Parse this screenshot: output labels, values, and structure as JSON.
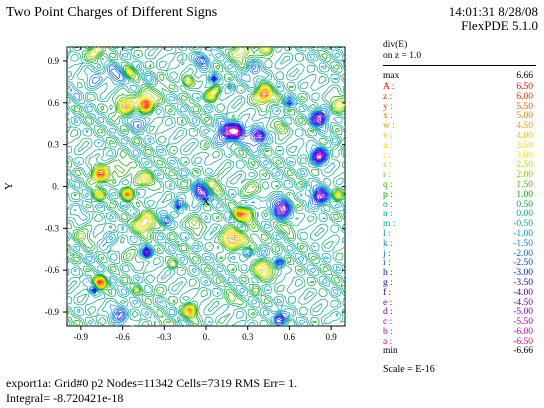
{
  "header": {
    "title": "Two Point Charges of Different Signs",
    "timestamp": "14:01:31 8/28/08",
    "software": "FlexPDE 5.1.0"
  },
  "legend": {
    "quantity": "div(E)",
    "surface": "on z = 1.0",
    "max_label": "max",
    "max_value": "6.66",
    "min_label": "min",
    "min_value": "-6.66",
    "scale": "Scale = E-16",
    "levels": [
      {
        "label": "A :",
        "value": "6.50",
        "color": "#ff0000"
      },
      {
        "label": "z :",
        "value": "6.00",
        "color": "#ff2a00"
      },
      {
        "label": "y :",
        "value": "5.50",
        "color": "#ff5500"
      },
      {
        "label": "x :",
        "value": "5.00",
        "color": "#ff7700"
      },
      {
        "label": "w :",
        "value": "4.50",
        "color": "#ff9900"
      },
      {
        "label": "v :",
        "value": "4.00",
        "color": "#ffbb00"
      },
      {
        "label": "u :",
        "value": "3.50",
        "color": "#ffdd00"
      },
      {
        "label": "t :",
        "value": "3.00",
        "color": "#eeee00"
      },
      {
        "label": "s :",
        "value": "2.50",
        "color": "#bbdd00"
      },
      {
        "label": "r :",
        "value": "2.00",
        "color": "#88cc00"
      },
      {
        "label": "q :",
        "value": "1.50",
        "color": "#44bb00"
      },
      {
        "label": "p :",
        "value": "1.00",
        "color": "#00aa00"
      },
      {
        "label": "o :",
        "value": "0.50",
        "color": "#00aa44"
      },
      {
        "label": "n :",
        "value": "0.00",
        "color": "#00aa88"
      },
      {
        "label": "m :",
        "value": "-0.50",
        "color": "#00aaaa"
      },
      {
        "label": "l :",
        "value": "-1.00",
        "color": "#0099cc"
      },
      {
        "label": "k :",
        "value": "-1.50",
        "color": "#0088dd"
      },
      {
        "label": "j :",
        "value": "-2.00",
        "color": "#0066ee"
      },
      {
        "label": "i :",
        "value": "-2.50",
        "color": "#0044ff"
      },
      {
        "label": "h :",
        "value": "-3.00",
        "color": "#0022ff"
      },
      {
        "label": "g :",
        "value": "-3.50",
        "color": "#2200ff"
      },
      {
        "label": "f :",
        "value": "-4.00",
        "color": "#4400ee"
      },
      {
        "label": "e :",
        "value": "-4.50",
        "color": "#6600dd"
      },
      {
        "label": "d :",
        "value": "-5.00",
        "color": "#8800cc"
      },
      {
        "label": "c :",
        "value": "-5.50",
        "color": "#aa00bb"
      },
      {
        "label": "b :",
        "value": "-6.00",
        "color": "#cc00aa"
      },
      {
        "label": "a :",
        "value": "-6.50",
        "color": "#dd0099"
      }
    ]
  },
  "chart_data": {
    "type": "contour",
    "quantity": "div(E)",
    "xlabel": "X",
    "ylabel": "Y",
    "xlim": [
      -1.0,
      1.0
    ],
    "ylim": [
      -1.0,
      1.0
    ],
    "xticks": [
      "-0.9",
      "-0.6",
      "-0.3",
      "0.",
      "0.3",
      "0.6",
      "0.9"
    ],
    "yticks": [
      "0.9",
      "0.6",
      "0.3",
      "0.",
      "-0.3",
      "-0.6",
      "-0.9"
    ],
    "value_range": [
      -6.66,
      6.66
    ],
    "value_scale": "E-16",
    "plot_background": "#ffffff"
  },
  "footer": {
    "line1": "export1a:  Grid#0  p2  Nodes=11342 Cells=7319 RMS Err= 1.",
    "line2": "Integral= -8.720421e-18"
  }
}
